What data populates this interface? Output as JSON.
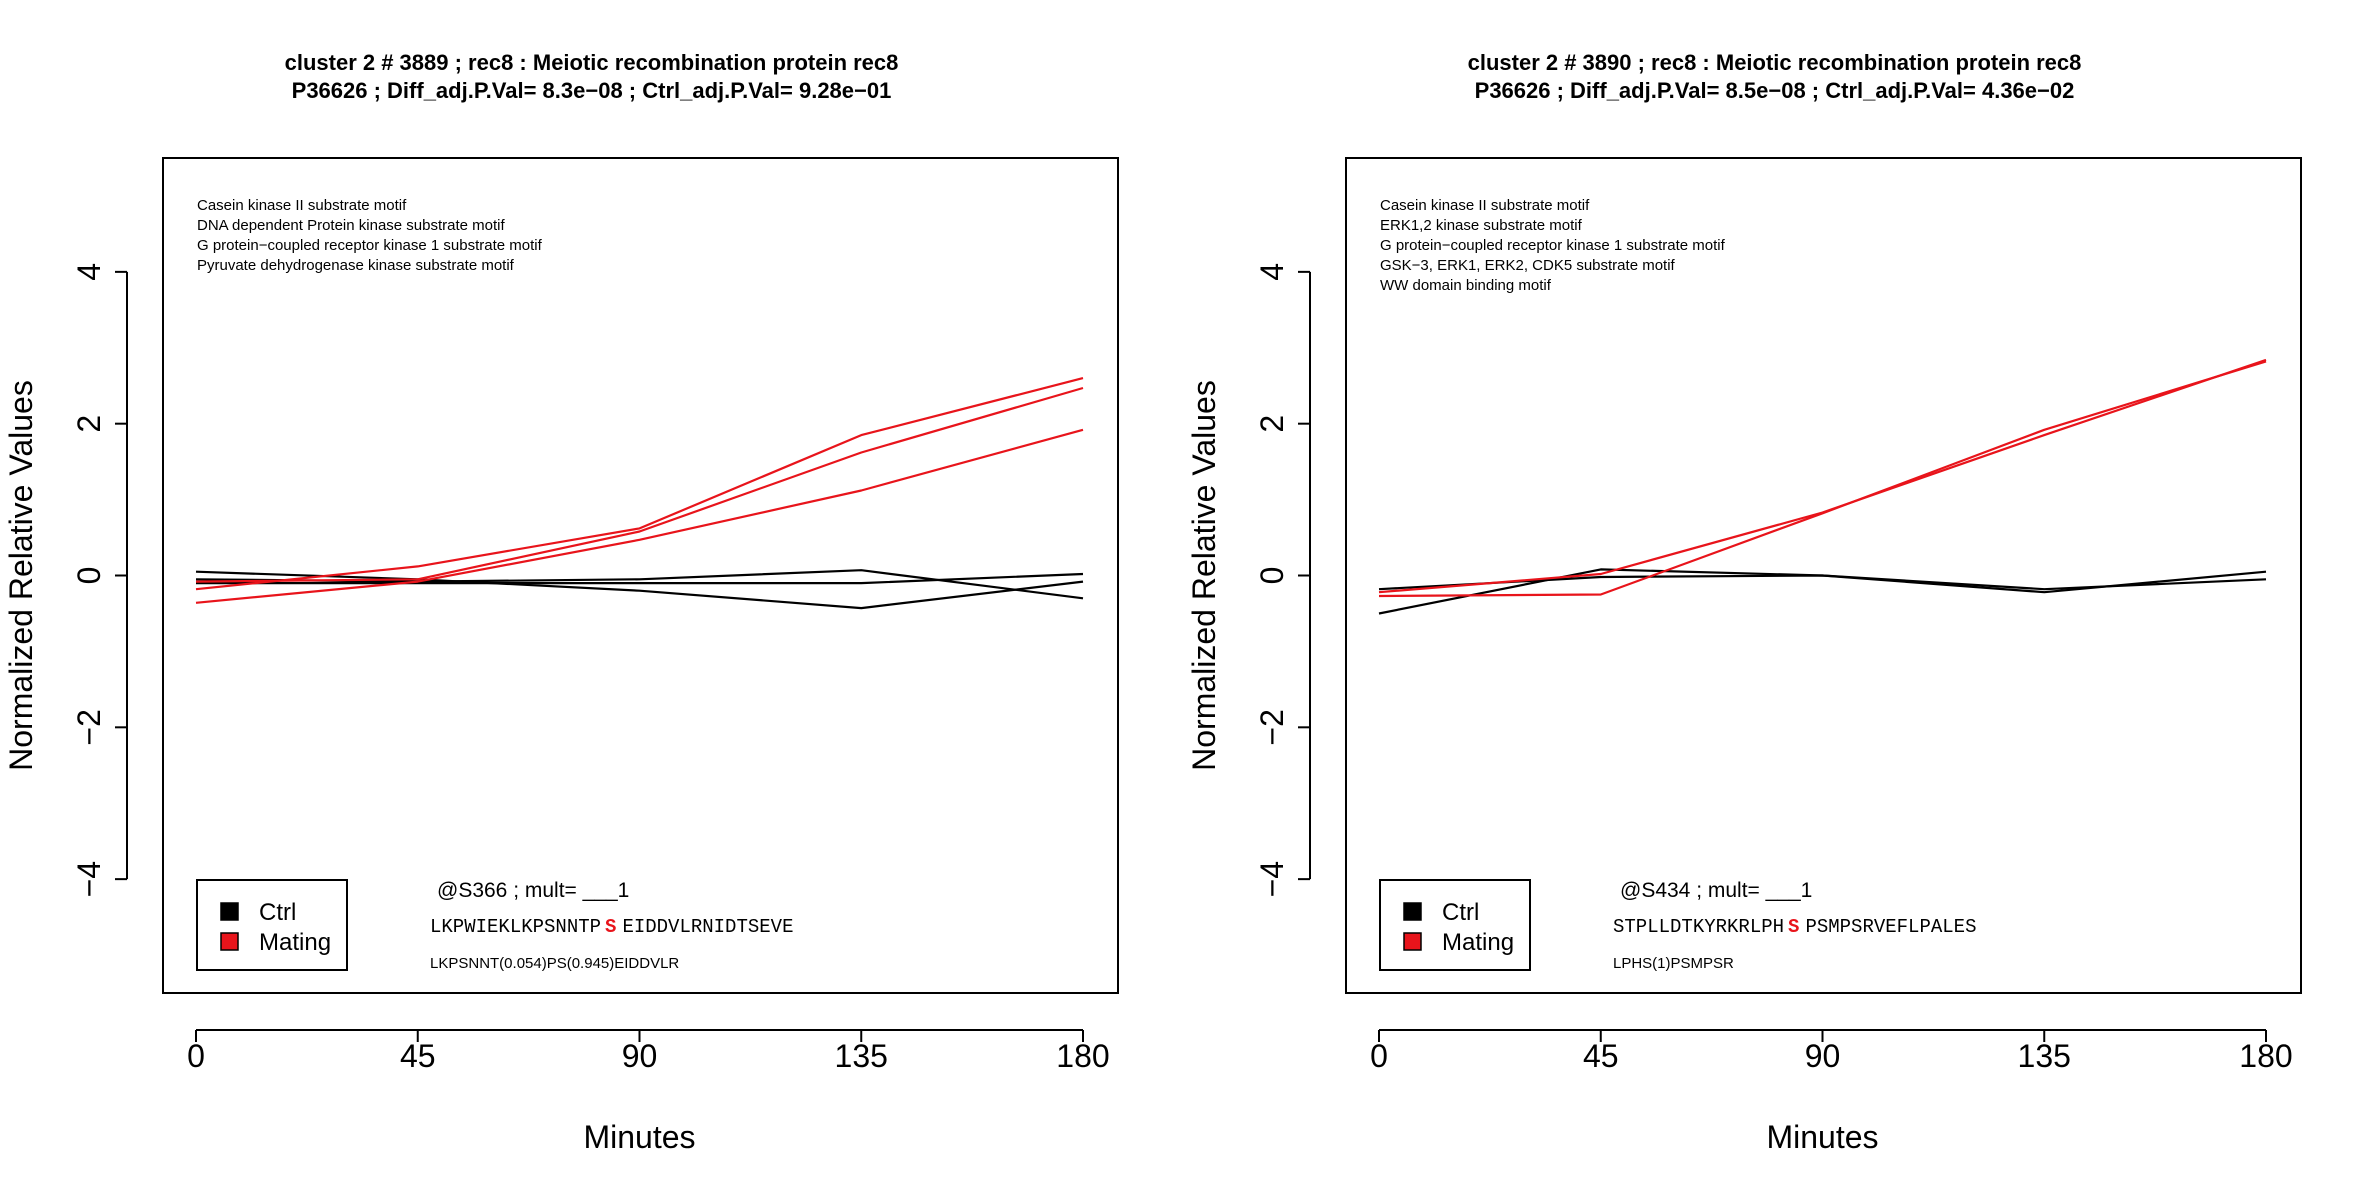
{
  "colors": {
    "ctrl": "#000000",
    "mating": "#e8141b",
    "highlight": "#e8141b"
  },
  "chart_data": [
    {
      "type": "line",
      "title": "cluster 2 # 3889 ; rec8 : Meiotic recombination protein rec8",
      "subtitle": "P36626 ; Diff_adj.P.Val= 8.3e−08 ; Ctrl_adj.P.Val= 9.28e−01",
      "xlabel": "Minutes",
      "ylabel": "Normalized Relative Values",
      "x": [
        0,
        45,
        90,
        135,
        180
      ],
      "xticks": [
        "0",
        "45",
        "90",
        "135",
        "180"
      ],
      "yticks": [
        "−4",
        "−2",
        "0",
        "2",
        "4"
      ],
      "xlim": [
        0,
        180
      ],
      "ylim": [
        -5.5,
        5.5
      ],
      "motifs": [
        "Casein kinase II substrate motif",
        "DNA dependent Protein kinase substrate motif",
        "G protein−coupled receptor kinase 1 substrate motif",
        "Pyruvate dehydrogenase kinase substrate motif"
      ],
      "legend": {
        "position": "bottom-left",
        "entries": [
          "Ctrl",
          "Mating"
        ]
      },
      "site": "@S366 ; mult= ___1",
      "sequence": {
        "before": "LKPWIEKLKPSNNTP",
        "site": "S",
        "after": "EIDDVLRNIDTSEVE"
      },
      "peptide": "LKPSNNT(0.054)PS(0.945)EIDDVLR",
      "series": [
        {
          "group": "Ctrl",
          "values": [
            0.05,
            -0.05,
            -0.2,
            -0.43,
            -0.08
          ]
        },
        {
          "group": "Ctrl",
          "values": [
            -0.05,
            -0.08,
            -0.05,
            0.07,
            -0.3
          ]
        },
        {
          "group": "Ctrl",
          "values": [
            -0.1,
            -0.1,
            -0.1,
            -0.1,
            0.02
          ]
        },
        {
          "group": "Mating",
          "values": [
            -0.18,
            0.12,
            0.62,
            1.85,
            2.6
          ]
        },
        {
          "group": "Mating",
          "values": [
            -0.08,
            -0.05,
            0.58,
            1.62,
            2.47
          ]
        },
        {
          "group": "Mating",
          "values": [
            -0.36,
            -0.08,
            0.47,
            1.12,
            1.92
          ]
        }
      ]
    },
    {
      "type": "line",
      "title": "cluster 2 # 3890 ; rec8 : Meiotic recombination protein rec8",
      "subtitle": "P36626 ; Diff_adj.P.Val= 8.5e−08 ; Ctrl_adj.P.Val= 4.36e−02",
      "xlabel": "Minutes",
      "ylabel": "Normalized Relative Values",
      "x": [
        0,
        45,
        90,
        135,
        180
      ],
      "xticks": [
        "0",
        "45",
        "90",
        "135",
        "180"
      ],
      "yticks": [
        "−4",
        "−2",
        "0",
        "2",
        "4"
      ],
      "xlim": [
        0,
        180
      ],
      "ylim": [
        -5.5,
        5.5
      ],
      "motifs": [
        "Casein kinase II substrate motif",
        "ERK1,2 kinase substrate motif",
        "G protein−coupled receptor kinase 1 substrate motif",
        "GSK−3, ERK1, ERK2, CDK5 substrate motif",
        "WW domain binding motif"
      ],
      "legend": {
        "position": "bottom-left",
        "entries": [
          "Ctrl",
          "Mating"
        ]
      },
      "site": "@S434 ; mult= ___1",
      "sequence": {
        "before": "STPLLDTKYRKRLPH",
        "site": "S",
        "after": "PSMPSRVEFLPALES"
      },
      "peptide": "LPHS(1)PSMPSR",
      "series": [
        {
          "group": "Ctrl",
          "values": [
            -0.18,
            -0.02,
            0.0,
            -0.18,
            -0.05
          ]
        },
        {
          "group": "Ctrl",
          "values": [
            -0.5,
            0.08,
            0.0,
            -0.22,
            0.05
          ]
        },
        {
          "group": "Mating",
          "values": [
            -0.27,
            -0.25,
            0.82,
            1.92,
            2.82
          ]
        },
        {
          "group": "Mating",
          "values": [
            -0.22,
            0.02,
            0.83,
            1.85,
            2.84
          ]
        }
      ]
    }
  ]
}
